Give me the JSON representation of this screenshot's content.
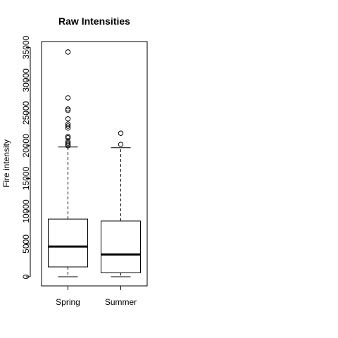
{
  "chart_data": {
    "type": "boxplot",
    "title": "Raw Intensities",
    "xlabel": "",
    "ylabel": "Fire intensity",
    "ylim": [
      -1400,
      35900
    ],
    "yticks": [
      0,
      5000,
      10000,
      15000,
      20000,
      25000,
      30000,
      35000
    ],
    "yticklabels": [
      "0",
      "5000",
      "10000",
      "15000",
      "20000",
      "25000",
      "30000",
      "35000"
    ],
    "grid": false,
    "legend": "none",
    "categories": [
      "Spring",
      "Summer"
    ],
    "boxes": [
      {
        "name": "Spring",
        "whisker_low": 0,
        "q1": 1500,
        "median": 4600,
        "q3": 8800,
        "whisker_high": 19800,
        "outliers": [
          20000,
          20200,
          20400,
          20600,
          21200,
          21400,
          22700,
          23000,
          23300,
          24100,
          25400,
          25600,
          27300,
          34300
        ]
      },
      {
        "name": "Summer",
        "whisker_low": 0,
        "q1": 600,
        "median": 3400,
        "q3": 8500,
        "whisker_high": 19700,
        "outliers": [
          20200,
          21900
        ]
      }
    ]
  }
}
